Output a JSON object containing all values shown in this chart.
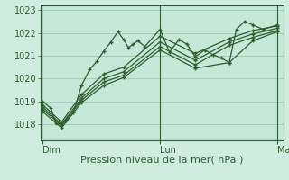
{
  "title": "",
  "xlabel": "Pression niveau de la mer( hPa )",
  "background_color": "#d0ece0",
  "plot_bg_color": "#c5e8d8",
  "grid_color": "#9dbfac",
  "line_color": "#2d5e2d",
  "marker_color": "#2d5e2d",
  "xtick_labels": [
    "Dim",
    "Lun",
    "Mar"
  ],
  "xtick_positions": [
    0.0,
    1.0,
    2.0
  ],
  "ylim": [
    1017.3,
    1023.2
  ],
  "ytick_positions": [
    1018,
    1019,
    1020,
    1021,
    1022,
    1023
  ],
  "series": [
    [
      0.0,
      1019.0,
      0.07,
      1018.7,
      0.11,
      1018.05,
      0.16,
      1018.0,
      0.2,
      1018.15,
      0.26,
      1018.5,
      0.33,
      1019.7,
      0.4,
      1020.4,
      0.46,
      1020.75,
      0.52,
      1021.2,
      0.58,
      1021.6,
      0.64,
      1022.05,
      0.69,
      1021.7,
      0.73,
      1021.35,
      0.77,
      1021.5,
      0.81,
      1021.65,
      0.87,
      1021.4,
      1.0,
      1022.15,
      1.08,
      1021.15,
      1.16,
      1021.7,
      1.23,
      1021.5,
      1.3,
      1020.95,
      1.38,
      1021.25,
      1.45,
      1021.05,
      1.52,
      1020.9,
      1.59,
      1020.7,
      1.65,
      1022.15,
      1.72,
      1022.5,
      1.79,
      1022.35,
      1.88,
      1022.15,
      2.0,
      1022.35
    ],
    [
      0.0,
      1018.85,
      0.16,
      1018.1,
      0.33,
      1019.3,
      0.52,
      1020.2,
      0.69,
      1020.5,
      1.0,
      1021.85,
      1.3,
      1021.1,
      1.59,
      1021.75,
      1.79,
      1022.1,
      2.0,
      1022.3
    ],
    [
      0.0,
      1018.75,
      0.16,
      1018.0,
      0.33,
      1019.15,
      0.52,
      1020.0,
      0.69,
      1020.3,
      1.0,
      1021.6,
      1.3,
      1020.8,
      1.59,
      1021.6,
      1.79,
      1021.95,
      2.0,
      1022.2
    ],
    [
      0.0,
      1018.65,
      0.16,
      1017.95,
      0.33,
      1019.05,
      0.52,
      1019.85,
      0.69,
      1020.15,
      1.0,
      1021.4,
      1.3,
      1020.6,
      1.59,
      1021.45,
      1.79,
      1021.8,
      2.0,
      1022.1
    ],
    [
      0.0,
      1018.55,
      0.16,
      1017.85,
      0.33,
      1018.95,
      0.52,
      1019.7,
      0.69,
      1020.05,
      1.0,
      1021.25,
      1.3,
      1020.45,
      1.59,
      1020.7,
      1.79,
      1021.65,
      2.0,
      1022.05
    ]
  ],
  "vlines": [
    1.0,
    2.0
  ],
  "vline_color": "#2d5e2d",
  "font_color": "#2d5e2d",
  "font_size": 7,
  "label_font_size": 8
}
